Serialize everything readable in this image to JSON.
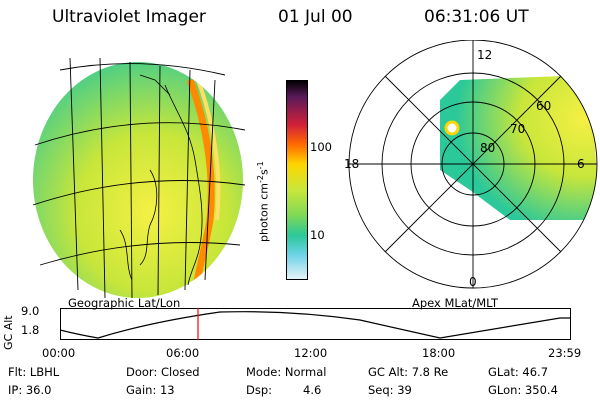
{
  "header": {
    "title": "Ultraviolet Imager",
    "date": "01 Jul 00",
    "time": "06:31:06 UT"
  },
  "colorbar": {
    "unit": "photon cm",
    "unit_exp": "-2",
    "unit_s": "s",
    "unit_exp2": "-1",
    "ticks": [
      "100",
      "10"
    ]
  },
  "panels": {
    "left_caption": "Geographic Lat/Lon",
    "right_caption": "Apex MLat/MLT",
    "mlt_labels": [
      "12",
      "18",
      "6",
      "0"
    ],
    "lat_labels": [
      "60",
      "70",
      "80"
    ]
  },
  "timeline": {
    "ylabel": "GC Alt",
    "yticks": [
      "9.0",
      "1.8"
    ],
    "xticks": [
      "00:00",
      "06:00",
      "12:00",
      "18:00",
      "23:59"
    ],
    "marker_time": "06:31"
  },
  "metadata": {
    "row1": [
      "Flt: LBHL",
      "Door: Closed",
      "Mode: Normal",
      "GC Alt: 7.8 Re",
      "GLat: 46.7"
    ],
    "row2": [
      "IP: 36.0",
      "Gain: 13",
      "Dsp:",
      "4.6",
      "Seq: 39",
      "GLon: 350.4"
    ]
  },
  "colors": {
    "marker": "#ff0000",
    "bar_top": "#000000",
    "bar_mid": "#ff8c00",
    "bar_green": "#7ed957",
    "bar_low": "#e6f2f7"
  }
}
